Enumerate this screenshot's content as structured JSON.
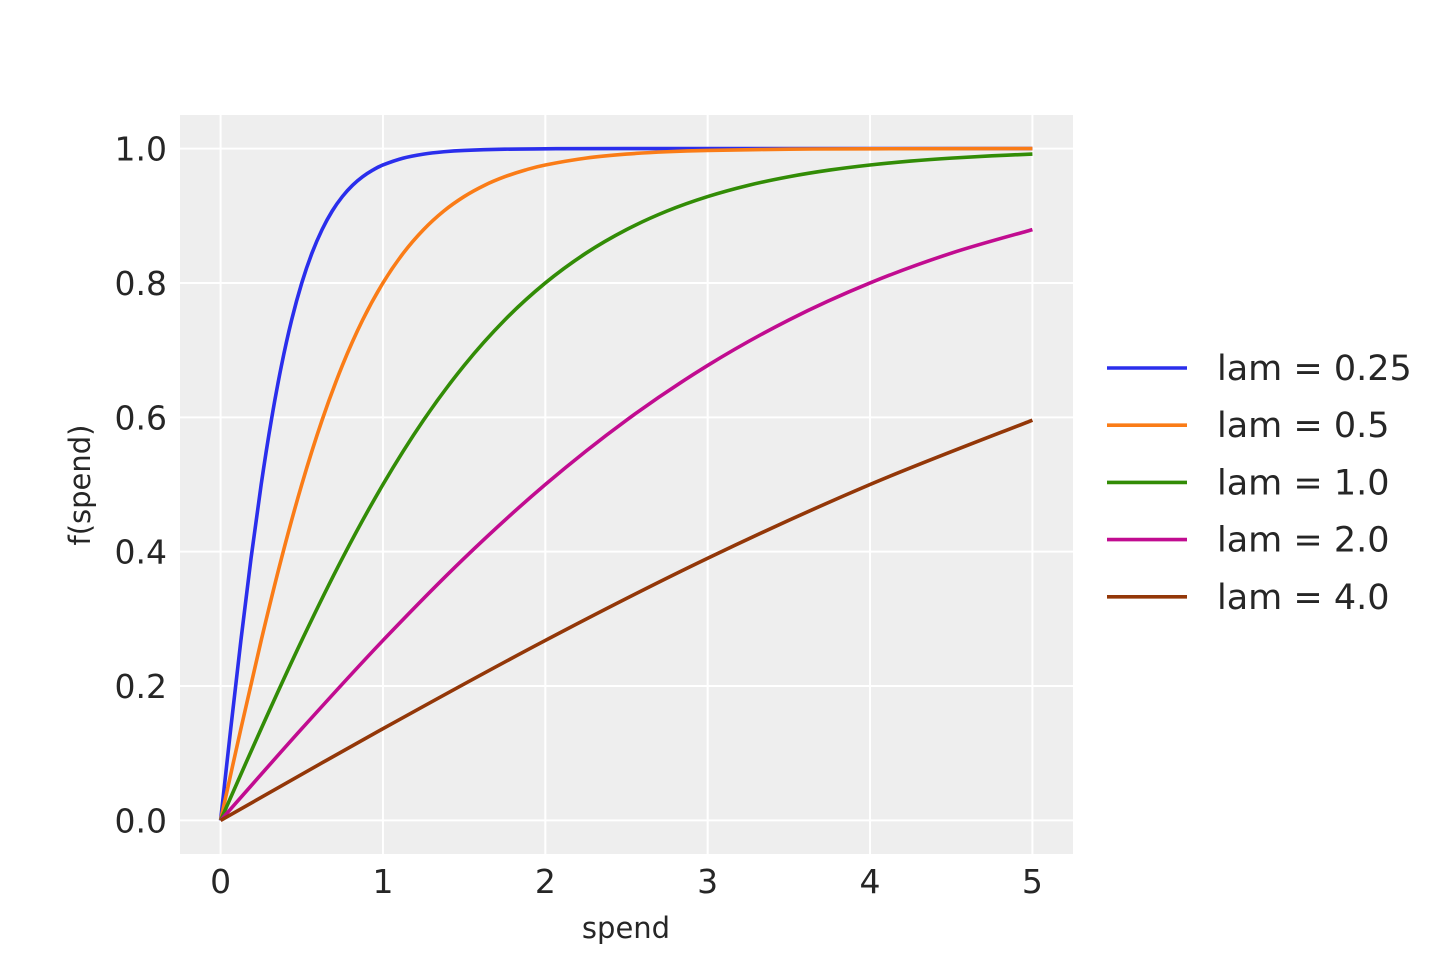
{
  "chart_data": {
    "type": "line",
    "title": "",
    "xlabel": "spend",
    "ylabel": "f(spend)",
    "xlim": [
      -0.25,
      5.25
    ],
    "ylim": [
      -0.05,
      1.05
    ],
    "xticks": [
      "0",
      "1",
      "2",
      "3",
      "4",
      "5"
    ],
    "yticks": [
      "0.0",
      "0.2",
      "0.4",
      "0.6",
      "0.8",
      "1.0"
    ],
    "grid": true,
    "background": "#eeeeee",
    "legend_position": "right",
    "series": [
      {
        "name": "lam = 0.25",
        "color": "#2a2eec",
        "x": [
          0,
          0.0625,
          0.125,
          0.1875,
          0.25,
          0.3125,
          0.375,
          0.4375,
          0.5,
          0.5625,
          0.625,
          0.6875,
          0.75,
          0.8125,
          0.875,
          0.9375,
          1,
          1.125,
          1.25,
          1.375,
          1.5,
          1.75,
          2,
          2.5,
          5
        ],
        "y": [
          0,
          0.1365,
          0.2679,
          0.3902,
          0.5,
          0.5958,
          0.6772,
          0.7449,
          0.8,
          0.8443,
          0.8794,
          0.9071,
          0.9286,
          0.9453,
          0.9581,
          0.968,
          0.9756,
          0.9858,
          0.9918,
          0.9953,
          0.9973,
          0.9991,
          0.9997,
          1.0,
          1.0
        ]
      },
      {
        "name": "lam = 0.5",
        "color": "#fa7c17",
        "x": [
          0,
          0.125,
          0.25,
          0.375,
          0.5,
          0.625,
          0.75,
          0.875,
          1,
          1.125,
          1.25,
          1.375,
          1.5,
          1.625,
          1.75,
          1.875,
          2,
          2.25,
          2.5,
          2.75,
          3,
          3.5,
          4,
          5
        ],
        "y": [
          0,
          0.1365,
          0.2679,
          0.3902,
          0.5,
          0.5958,
          0.6772,
          0.7449,
          0.8,
          0.8443,
          0.8794,
          0.9071,
          0.9286,
          0.9453,
          0.9581,
          0.968,
          0.9756,
          0.9858,
          0.9918,
          0.9953,
          0.9973,
          0.9991,
          0.9997,
          1.0
        ]
      },
      {
        "name": "lam = 1.0",
        "color": "#328c06",
        "x": [
          0,
          0.25,
          0.5,
          0.75,
          1,
          1.25,
          1.5,
          1.75,
          2,
          2.25,
          2.5,
          2.75,
          3,
          3.25,
          3.5,
          3.75,
          4,
          4.25,
          4.5,
          4.75,
          5
        ],
        "y": [
          0,
          0.1365,
          0.2679,
          0.3902,
          0.5,
          0.5958,
          0.6772,
          0.7449,
          0.8,
          0.8443,
          0.8794,
          0.9071,
          0.9286,
          0.9453,
          0.9581,
          0.968,
          0.9756,
          0.9814,
          0.9858,
          0.9892,
          0.9918
        ]
      },
      {
        "name": "lam = 2.0",
        "color": "#c10c90",
        "x": [
          0,
          0.5,
          1,
          1.5,
          2,
          2.5,
          3,
          3.5,
          4,
          4.5,
          5
        ],
        "y": [
          0,
          0.1365,
          0.2679,
          0.3902,
          0.5,
          0.5958,
          0.6772,
          0.7449,
          0.8,
          0.8443,
          0.8794
        ]
      },
      {
        "name": "lam = 4.0",
        "color": "#933708",
        "x": [
          0,
          1,
          2,
          3,
          4,
          5
        ],
        "y": [
          0,
          0.1365,
          0.2679,
          0.3902,
          0.5,
          0.5958
        ]
      }
    ]
  }
}
